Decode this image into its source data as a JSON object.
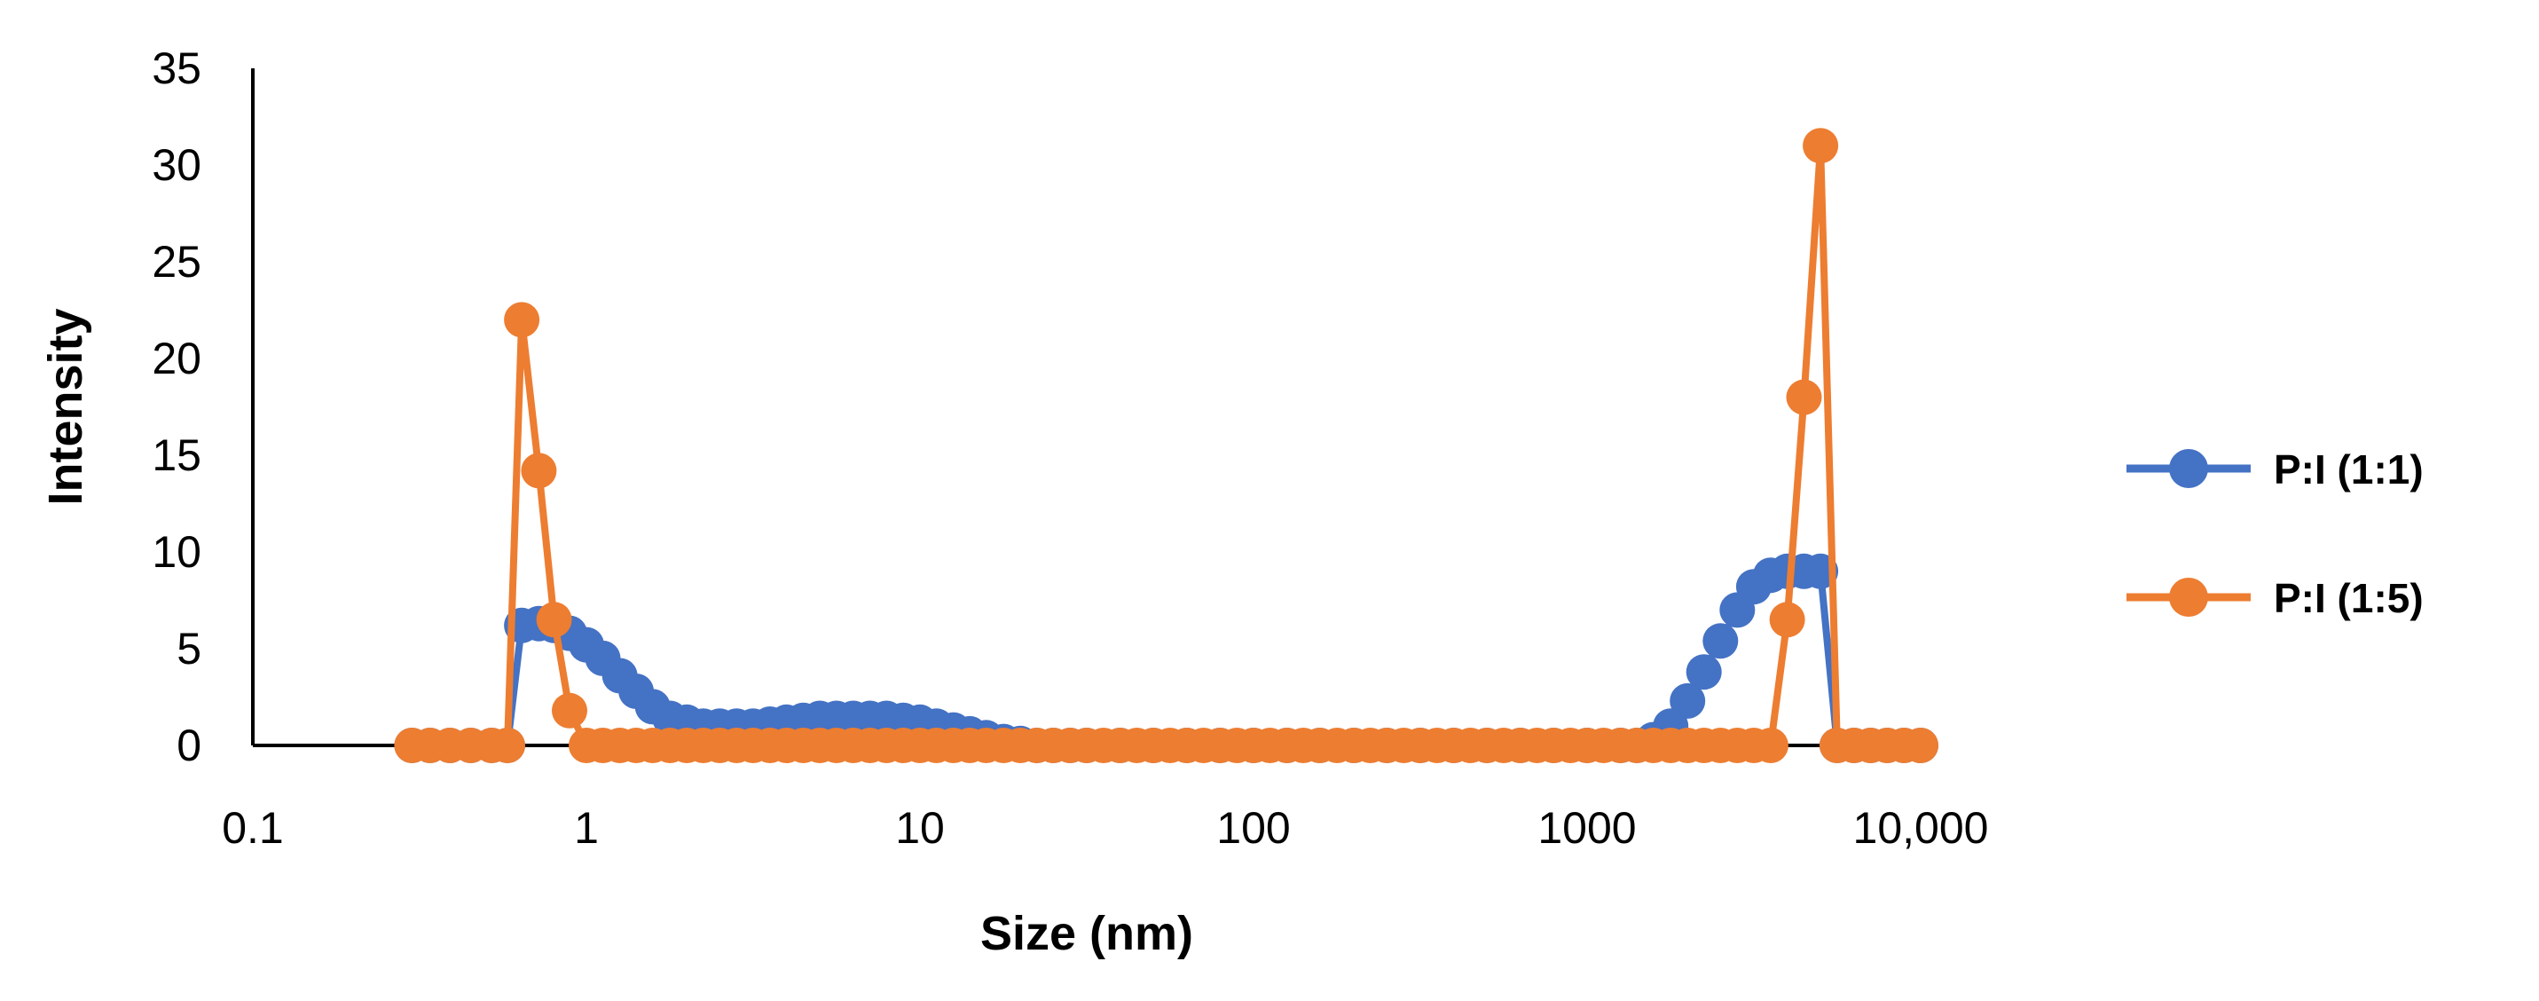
{
  "chart_data": {
    "type": "scatter",
    "title": "",
    "xlabel": "Size (nm)",
    "ylabel": "Intensity",
    "x_scale": "log",
    "xlim": [
      0.1,
      10000
    ],
    "ylim": [
      0,
      35
    ],
    "x_ticks": [
      {
        "value": 0.1,
        "label": "0.1"
      },
      {
        "value": 1,
        "label": "1"
      },
      {
        "value": 10,
        "label": "10"
      },
      {
        "value": 100,
        "label": "100"
      },
      {
        "value": 1000,
        "label": "1000"
      },
      {
        "value": 10000,
        "label": "10,000"
      }
    ],
    "y_ticks": [
      0,
      5,
      10,
      15,
      20,
      25,
      30,
      35
    ],
    "grid": false,
    "legend_position": "right",
    "series": [
      {
        "name": "P:I (1:1)",
        "color": "#4472C4",
        "x": [
          0.3,
          0.34,
          0.39,
          0.45,
          0.52,
          0.58,
          0.64,
          0.72,
          0.8,
          0.89,
          1.0,
          1.12,
          1.26,
          1.41,
          1.58,
          1.78,
          2.0,
          2.24,
          2.51,
          2.82,
          3.16,
          3.55,
          3.98,
          4.47,
          5.01,
          5.62,
          6.31,
          7.08,
          7.94,
          8.91,
          10.0,
          11.2,
          12.6,
          14.1,
          15.8,
          17.8,
          20.0,
          22.4,
          25.1,
          28.2,
          31.6,
          39.8,
          50.1,
          63.1,
          79.4,
          100,
          126,
          158,
          200,
          251,
          316,
          398,
          501,
          631,
          794,
          1000,
          1260,
          1410,
          1580,
          1780,
          2000,
          2240,
          2510,
          2820,
          3160,
          3550,
          3980,
          4470,
          5010,
          5620,
          6310,
          7080,
          7940,
          8910,
          10000
        ],
        "y": [
          0,
          0,
          0,
          0,
          0,
          0,
          6.2,
          6.3,
          6.2,
          5.8,
          5.2,
          4.5,
          3.6,
          2.8,
          2.0,
          1.4,
          1.2,
          1.0,
          1.0,
          1.0,
          1.0,
          1.1,
          1.2,
          1.3,
          1.4,
          1.4,
          1.4,
          1.4,
          1.4,
          1.3,
          1.2,
          1.0,
          0.8,
          0.6,
          0.4,
          0.2,
          0.1,
          0,
          0,
          0,
          0,
          0,
          0,
          0,
          0,
          0,
          0,
          0,
          0,
          0,
          0,
          0,
          0,
          0,
          0,
          0,
          0,
          0,
          0.3,
          1.0,
          2.3,
          3.8,
          5.4,
          7.0,
          8.2,
          8.8,
          9.0,
          9.0,
          9.0,
          0,
          0,
          0,
          0,
          0,
          0
        ]
      },
      {
        "name": "P:I (1:5)",
        "color": "#ED7D31",
        "x": [
          0.3,
          0.34,
          0.39,
          0.45,
          0.52,
          0.58,
          0.64,
          0.72,
          0.8,
          0.89,
          1.0,
          1.12,
          1.26,
          1.41,
          1.58,
          1.78,
          2.0,
          2.24,
          2.51,
          2.82,
          3.16,
          3.55,
          3.98,
          4.47,
          5.01,
          5.62,
          6.31,
          7.08,
          7.94,
          8.91,
          10.0,
          11.2,
          12.6,
          14.1,
          15.8,
          17.8,
          20.0,
          22.4,
          25.1,
          28.2,
          31.6,
          35.5,
          39.8,
          44.7,
          50.1,
          56.2,
          63.1,
          70.8,
          79.4,
          89.1,
          100,
          112,
          126,
          141,
          158,
          178,
          200,
          224,
          251,
          282,
          316,
          355,
          398,
          447,
          501,
          562,
          631,
          708,
          794,
          891,
          1000,
          1120,
          1260,
          1410,
          1580,
          1780,
          2000,
          2240,
          2510,
          2820,
          3160,
          3550,
          3980,
          4470,
          5010,
          5620,
          6310,
          7080,
          7940,
          8910,
          10000
        ],
        "y": [
          0,
          0,
          0,
          0,
          0,
          0,
          22,
          14.2,
          6.5,
          1.8,
          0,
          0,
          0,
          0,
          0,
          0,
          0,
          0,
          0,
          0,
          0,
          0,
          0,
          0,
          0,
          0,
          0,
          0,
          0,
          0,
          0,
          0,
          0,
          0,
          0,
          0,
          0,
          0,
          0,
          0,
          0,
          0,
          0,
          0,
          0,
          0,
          0,
          0,
          0,
          0,
          0,
          0,
          0,
          0,
          0,
          0,
          0,
          0,
          0,
          0,
          0,
          0,
          0,
          0,
          0,
          0,
          0,
          0,
          0,
          0,
          0,
          0,
          0,
          0,
          0,
          0,
          0,
          0,
          0,
          0,
          0,
          0,
          6.5,
          18,
          31,
          0,
          0,
          0,
          0,
          0,
          0
        ]
      }
    ]
  }
}
